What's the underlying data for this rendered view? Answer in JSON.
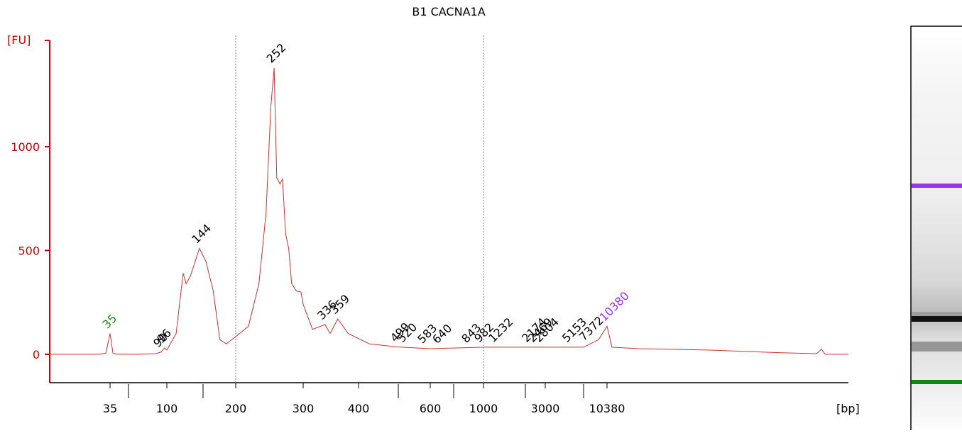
{
  "chart_data": {
    "type": "line",
    "title": "B1 CACNA1A",
    "ylabel": "[FU]",
    "xlabel": "[bp]",
    "xlim": [
      15,
      40000
    ],
    "ylim": [
      -137,
      1512
    ],
    "yticks": [
      0,
      500,
      1000
    ],
    "xticks": [
      35,
      100,
      200,
      300,
      400,
      600,
      1000,
      3000,
      10380
    ],
    "xminorticks": [
      50,
      150,
      500,
      700,
      2000,
      7000
    ],
    "markers": [
      200,
      1000
    ],
    "axis_color": "#cc0000",
    "series": [
      {
        "name": "B1 CACNA1A",
        "color": "#cc3333",
        "x": [
          15,
          30,
          33,
          35,
          37,
          40,
          60,
          80,
          90,
          96,
          100,
          111,
          120,
          124,
          130,
          144,
          154,
          164,
          174,
          184,
          200,
          216,
          230,
          240,
          247,
          252,
          256,
          261,
          265,
          270,
          275,
          280,
          288,
          296,
          300,
          315,
          336,
          345,
          359,
          379,
          425,
          500,
          600,
          1000,
          3000,
          7000,
          9000,
          10380,
          10670,
          12420,
          18460,
          27500,
          33500,
          34400,
          35100,
          40000
        ],
        "values": [
          0,
          0,
          5,
          100,
          5,
          0,
          0,
          2,
          10,
          30,
          20,
          100,
          390,
          340,
          375,
          510,
          445,
          305,
          70,
          50,
          85,
          135,
          340,
          680,
          1195,
          1380,
          850,
          820,
          845,
          580,
          510,
          340,
          305,
          300,
          240,
          120,
          143,
          100,
          170,
          100,
          50,
          35,
          27,
          34,
          34,
          34,
          70,
          135,
          34,
          27,
          20,
          7,
          3,
          24,
          0,
          0
        ]
      }
    ],
    "peaks": [
      {
        "bp": 35,
        "color": "#228b22"
      },
      {
        "bp": 90,
        "color": "#000000"
      },
      {
        "bp": 96,
        "color": "#000000"
      },
      {
        "bp": 144,
        "color": "#000000"
      },
      {
        "bp": 252,
        "color": "#000000"
      },
      {
        "bp": 336,
        "color": "#000000"
      },
      {
        "bp": 359,
        "color": "#000000"
      },
      {
        "bp": 499,
        "color": "#000000"
      },
      {
        "bp": 520,
        "color": "#000000"
      },
      {
        "bp": 583,
        "color": "#000000"
      },
      {
        "bp": 640,
        "color": "#000000"
      },
      {
        "bp": 843,
        "color": "#000000"
      },
      {
        "bp": 982,
        "color": "#000000"
      },
      {
        "bp": 1232,
        "color": "#000000"
      },
      {
        "bp": 2174,
        "color": "#000000"
      },
      {
        "bp": 2469,
        "color": "#000000"
      },
      {
        "bp": 2804,
        "color": "#000000"
      },
      {
        "bp": 5153,
        "color": "#000000"
      },
      {
        "bp": 7372,
        "color": "#000000"
      },
      {
        "bp": 10380,
        "color": "#9933ff"
      }
    ]
  }
}
